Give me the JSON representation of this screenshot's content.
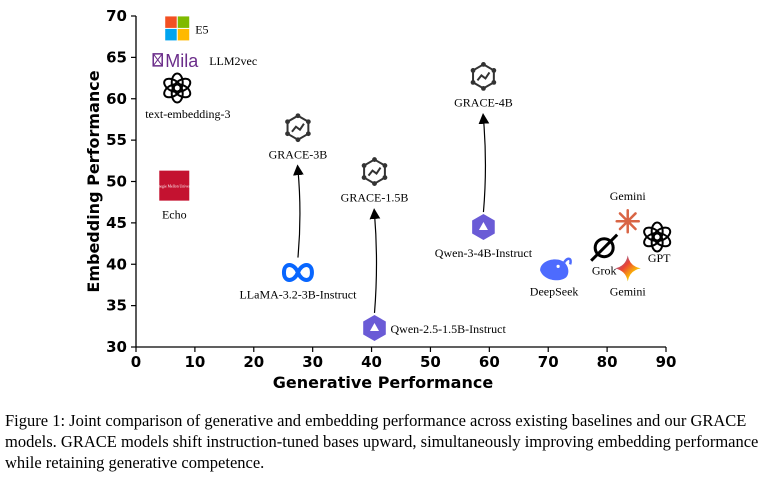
{
  "chart_data": {
    "type": "scatter",
    "xlabel": "Generative Performance",
    "ylabel": "Embedding Performance",
    "xlim": [
      0,
      90
    ],
    "ylim": [
      30,
      70
    ],
    "x_ticks": [
      0,
      10,
      20,
      30,
      40,
      50,
      60,
      70,
      80,
      90
    ],
    "y_ticks": [
      30,
      35,
      40,
      45,
      50,
      55,
      60,
      65,
      70
    ],
    "grid": false,
    "points": [
      {
        "label": "E5",
        "x": 7,
        "y": 68.5,
        "icon": "microsoft-logo"
      },
      {
        "label": "LLM2vec",
        "x": 7,
        "y": 64.7,
        "icon": "mila-logo",
        "logo_text": "Mila"
      },
      {
        "label": "text-embedding-3",
        "x": 7,
        "y": 61.3,
        "icon": "openai-logo"
      },
      {
        "label": "Echo",
        "x": 6.5,
        "y": 49.5,
        "icon": "cmu-seal",
        "logo_text": "Carnegie Mellon University"
      },
      {
        "label": "GRACE-3B",
        "x": 27.5,
        "y": 56.5,
        "icon": "grace-logo"
      },
      {
        "label": "GRACE-1.5B",
        "x": 40.5,
        "y": 51.2,
        "icon": "grace-logo"
      },
      {
        "label": "GRACE-4B",
        "x": 59,
        "y": 62.7,
        "icon": "grace-logo"
      },
      {
        "label": "LLaMA-3.2-3B-Instruct",
        "x": 27.5,
        "y": 39,
        "icon": "meta-logo"
      },
      {
        "label": "Qwen-2.5-1.5B-Instruct",
        "x": 40.5,
        "y": 32.3,
        "icon": "qwen-logo"
      },
      {
        "label": "Qwen-3-4B-Instruct",
        "x": 59,
        "y": 44.5,
        "icon": "qwen-logo"
      },
      {
        "label": "DeepSeek",
        "x": 71,
        "y": 39.5,
        "icon": "deepseek-logo"
      },
      {
        "label": "Grok",
        "x": 79.5,
        "y": 42,
        "icon": "grok-logo"
      },
      {
        "label": "Gemini",
        "x": 83.5,
        "y": 45.2,
        "icon": "gemini-star-logo",
        "label_position": "top"
      },
      {
        "label": "GPT",
        "x": 88.5,
        "y": 43.3,
        "icon": "openai-logo"
      },
      {
        "label": "Gemini",
        "x": 83.5,
        "y": 39.5,
        "icon": "gemini-sparkle-logo",
        "label_position": "bottom"
      }
    ],
    "arrows": [
      {
        "from": "LLaMA-3.2-3B-Instruct",
        "to": "GRACE-3B"
      },
      {
        "from": "Qwen-2.5-1.5B-Instruct",
        "to": "GRACE-1.5B"
      },
      {
        "from": "Qwen-3-4B-Instruct",
        "to": "GRACE-4B"
      }
    ]
  },
  "caption": {
    "text": "Figure 1: Joint comparison of generative and embedding performance across existing baselines and our GRACE models. GRACE models shift instruction-tuned bases upward, simultaneously improving embedding performance while retaining generative competence."
  },
  "colors": {
    "microsoft": [
      "#f25022",
      "#7fba00",
      "#00a4ef",
      "#ffb900"
    ],
    "mila": "#6b2d8a",
    "cmu": "#c41230",
    "meta": "#0866ff",
    "qwen": "#6a5bd6",
    "deepseek": "#4d6bfe",
    "gemini_star": "#d96545",
    "gemini_sparkle": [
      "#4285f4",
      "#ea4335",
      "#fbbc04",
      "#34a853"
    ],
    "ink": "#000000"
  }
}
